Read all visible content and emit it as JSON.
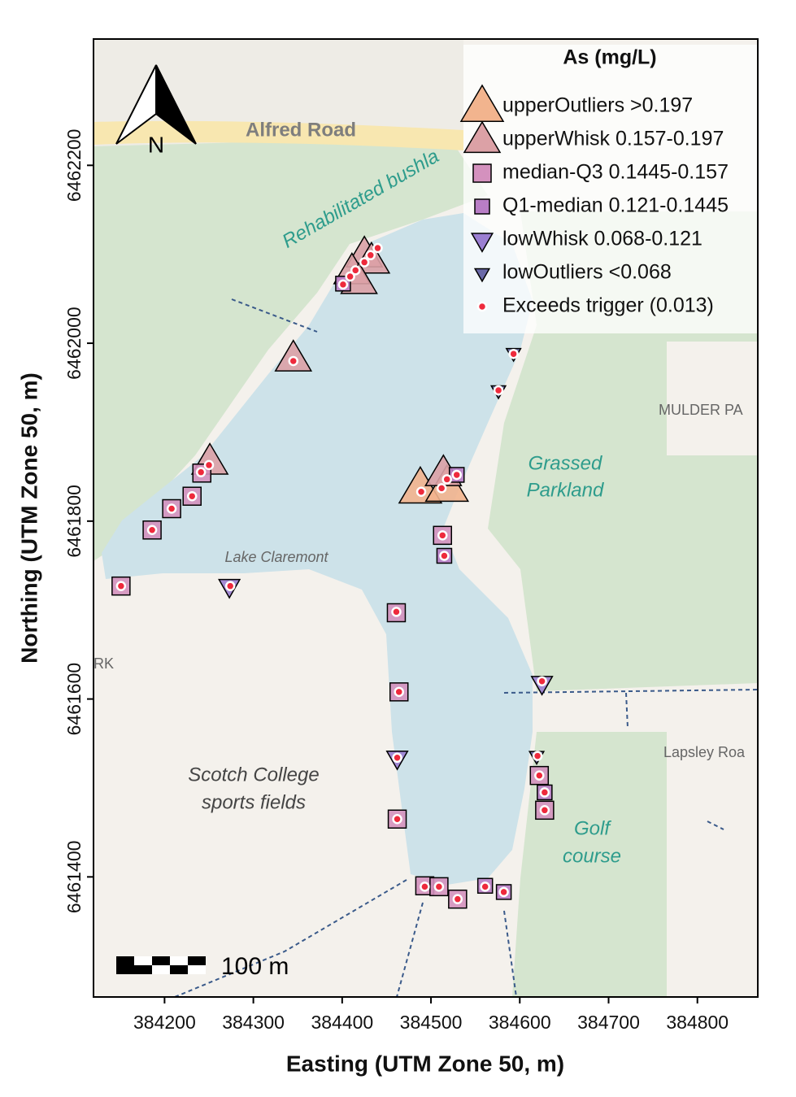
{
  "chart_data": {
    "type": "scatter",
    "xlabel": "Easting (UTM Zone 50, m)",
    "ylabel": "Northing (UTM Zone 50, m)",
    "legend_title": "As (mg/L)",
    "legend_position": "top-right",
    "north_label": "N",
    "scalebar_label": "100 m",
    "map_labels": [
      "Alfred Road",
      "Rehabilitated bushla",
      "MULDER PA",
      "Grassed",
      "Parkland",
      "Lake Claremont",
      "Scotch College",
      "sports fields",
      "Golf",
      "course",
      "Lapsley Roa",
      "RK"
    ],
    "xlim": [
      384120,
      384868
    ],
    "ylim": [
      6461265,
      6462342
    ],
    "xticks": [
      384200,
      384300,
      384400,
      384500,
      384600,
      384700,
      384800
    ],
    "yticks": [
      6461400,
      6461600,
      6461800,
      6462000,
      6462200
    ],
    "series": [
      {
        "name": "upperOutliers >0.197",
        "marker": "triangle-up",
        "color": "#f2b48e",
        "x": [
          384488,
          384518
        ],
        "y": [
          6461837,
          6461839
        ]
      },
      {
        "name": "upperWhisk 0.157-0.197",
        "marker": "triangle-up",
        "color": "#dca1a6",
        "x": [
          384345,
          384251,
          384425,
          384433,
          384411,
          384419,
          384514
        ],
        "y": [
          6461983,
          6461867,
          6462100,
          6462093,
          6462081,
          6462070,
          6461854
        ]
      },
      {
        "name": "median-Q3 0.1445-0.157",
        "marker": "square",
        "color": "#d491be",
        "x": [
          384151,
          384186,
          384208,
          384231,
          384242,
          384461,
          384464,
          384462,
          384493,
          384530,
          384513,
          384622,
          384628,
          384509
        ],
        "y": [
          6461727,
          6461790,
          6461814,
          6461828,
          6461854,
          6461697,
          6461608,
          6461465,
          6461390,
          6461375,
          6461784,
          6461514,
          6461475,
          6461389
        ]
      },
      {
        "name": "Q1-median 0.121-0.1445",
        "marker": "square",
        "color": "#b97ec6",
        "x": [
          384529,
          384582,
          384628,
          384515,
          384401,
          384561
        ],
        "y": [
          6461852,
          6461383,
          6461495,
          6461761,
          6462067,
          6461390
        ]
      },
      {
        "name": "lowWhisk 0.068-0.121",
        "marker": "triangle-down",
        "color": "#9b7fd2",
        "x": [
          384462,
          384273,
          384625
        ],
        "y": [
          6461534,
          6461727,
          6461618
        ]
      },
      {
        "name": "lowOutliers <0.068",
        "marker": "triangle-down",
        "color": "#6a69a8",
        "x": [
          384593,
          384576,
          384619
        ],
        "y": [
          6461989,
          6461947,
          6461536
        ]
      },
      {
        "name": "Exceeds trigger (0.013)",
        "marker": "circle",
        "color": "#ee2a3c",
        "x": [
          384151,
          384186,
          384208,
          384231,
          384241,
          384250,
          384345,
          384401,
          384409,
          384415,
          384425,
          384432,
          384440,
          384489,
          384512,
          384518,
          384529,
          384513,
          384515,
          384461,
          384464,
          384462,
          384462,
          384493,
          384509,
          384530,
          384561,
          384582,
          384593,
          384576,
          384625,
          384620,
          384622,
          384628,
          384628,
          384274
        ],
        "y": [
          6461727,
          6461790,
          6461814,
          6461828,
          6461855,
          6461863,
          6461980,
          6462066,
          6462075,
          6462082,
          6462091,
          6462099,
          6462107,
          6461833,
          6461837,
          6461847,
          6461852,
          6461784,
          6461761,
          6461698,
          6461608,
          6461534,
          6461465,
          6461389,
          6461389,
          6461375,
          6461389,
          6461383,
          6461988,
          6461947,
          6461620,
          6461536,
          6461514,
          6461495,
          6461475,
          6461727
        ]
      }
    ]
  }
}
